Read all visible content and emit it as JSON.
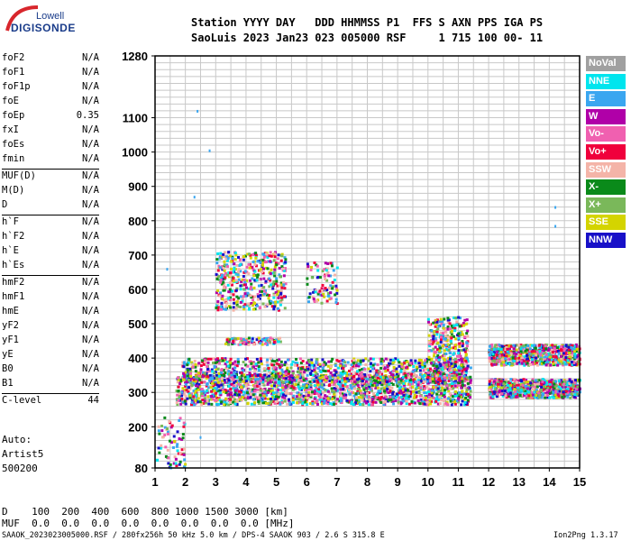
{
  "logo": {
    "line1": "Lowell",
    "line2": "DIGISONDE"
  },
  "header": {
    "line1": "Station YYYY DAY   DDD HHMMSS P1  FFS S AXN PPS IGA PS",
    "line2": "SaoLuis 2023 Jan23 023 005000 RSF     1 715 100 00- 11"
  },
  "params": [
    {
      "k": "foF2",
      "v": "N/A"
    },
    {
      "k": "foF1",
      "v": "N/A"
    },
    {
      "k": "foF1p",
      "v": "N/A"
    },
    {
      "k": "foE",
      "v": "N/A"
    },
    {
      "k": "foEp",
      "v": "0.35"
    },
    {
      "k": "fxI",
      "v": "N/A"
    },
    {
      "k": "foEs",
      "v": "N/A"
    },
    {
      "k": "fmin",
      "v": "N/A"
    },
    {
      "k": "MUF(D)",
      "v": "N/A"
    },
    {
      "k": "M(D)",
      "v": "N/A"
    },
    {
      "k": "D",
      "v": "N/A"
    },
    {
      "k": "h`F",
      "v": "N/A"
    },
    {
      "k": "h`F2",
      "v": "N/A"
    },
    {
      "k": "h`E",
      "v": "N/A"
    },
    {
      "k": "h`Es",
      "v": "N/A"
    },
    {
      "k": "hmF2",
      "v": "N/A"
    },
    {
      "k": "hmF1",
      "v": "N/A"
    },
    {
      "k": "hmE",
      "v": "N/A"
    },
    {
      "k": "yF2",
      "v": "N/A"
    },
    {
      "k": "yF1",
      "v": "N/A"
    },
    {
      "k": "yE",
      "v": "N/A"
    },
    {
      "k": "B0",
      "v": "N/A"
    },
    {
      "k": "B1",
      "v": "N/A"
    },
    {
      "k": "C-level",
      "v": "44"
    }
  ],
  "auto": {
    "line1": "Auto:",
    "line2": "Artist5",
    "line3": "500200"
  },
  "legend": [
    {
      "label": "NoVal",
      "color": "#a0a0a0"
    },
    {
      "label": "NNE",
      "color": "#00e5ee"
    },
    {
      "label": "E",
      "color": "#3aa6f0"
    },
    {
      "label": "W",
      "color": "#b000a8"
    },
    {
      "label": "Vo-",
      "color": "#f060b0"
    },
    {
      "label": "Vo+",
      "color": "#f0003c"
    },
    {
      "label": "SSW",
      "color": "#f4b4a8"
    },
    {
      "label": "X-",
      "color": "#0a8a1a"
    },
    {
      "label": "X+",
      "color": "#7ab85a"
    },
    {
      "label": "SSE",
      "color": "#d4d400"
    },
    {
      "label": "NNW",
      "color": "#1810c8"
    }
  ],
  "footer": {
    "d_row": "D    100  200  400  600  800 1000 1500 3000 [km]",
    "muf_row": "MUF  0.0  0.0  0.0  0.0  0.0  0.0  0.0  0.0 [MHz]",
    "info": "SAAOK_2023023005000.RSF / 280fx256h 50 kHz 5.0 km / DPS-4 SAAOK 903 / 2.6 S 315.8 E",
    "version": "Ion2Png 1.3.17"
  },
  "chart_data": {
    "type": "scatter",
    "title": "",
    "xlabel": "",
    "ylabel": "",
    "xlim": [
      1,
      15
    ],
    "ylim": [
      80,
      1280
    ],
    "xticks": [
      "1",
      "2",
      "3",
      "4",
      "5",
      "6",
      "7",
      "8",
      "9",
      "10",
      "11",
      "12",
      "13",
      "14",
      "15"
    ],
    "yticks": [
      {
        "value": 80,
        "label": "80"
      },
      {
        "value": 200,
        "label": "200"
      },
      {
        "value": 300,
        "label": "300"
      },
      {
        "value": 400,
        "label": "400"
      },
      {
        "value": 500,
        "label": "500"
      },
      {
        "value": 600,
        "label": "600"
      },
      {
        "value": 700,
        "label": "700"
      },
      {
        "value": 800,
        "label": "800"
      },
      {
        "value": 900,
        "label": "900"
      },
      {
        "value": 1000,
        "label": "1000"
      },
      {
        "value": 1100,
        "label": "1100"
      },
      {
        "value": 1280,
        "label": "1280"
      }
    ],
    "grid": true,
    "clusters": [
      {
        "name": "F-trace",
        "x": [
          1.7,
          11.4
        ],
        "y": [
          265,
          355
        ],
        "n": 1800
      },
      {
        "name": "F-trace-upper",
        "x": [
          1.9,
          11.4
        ],
        "y": [
          330,
          400
        ],
        "n": 900
      },
      {
        "name": "high-freq-lower",
        "x": [
          12.0,
          15.0
        ],
        "y": [
          285,
          340
        ],
        "n": 700
      },
      {
        "name": "high-freq-upper",
        "x": [
          12.0,
          15.0
        ],
        "y": [
          380,
          440
        ],
        "n": 700
      },
      {
        "name": "spread-10-11",
        "x": [
          10.0,
          11.3
        ],
        "y": [
          340,
          520
        ],
        "n": 350
      },
      {
        "name": "patch-450",
        "x": [
          3.3,
          5.2
        ],
        "y": [
          440,
          460
        ],
        "n": 90
      },
      {
        "name": "upper-patch",
        "x": [
          3.0,
          5.3
        ],
        "y": [
          540,
          710
        ],
        "n": 450
      },
      {
        "name": "upper-patch-2",
        "x": [
          6.0,
          7.0
        ],
        "y": [
          560,
          680
        ],
        "n": 90
      },
      {
        "name": "low-trace",
        "x": [
          1.0,
          2.0
        ],
        "y": [
          80,
          230
        ],
        "n": 70
      }
    ],
    "seed": 7
  }
}
